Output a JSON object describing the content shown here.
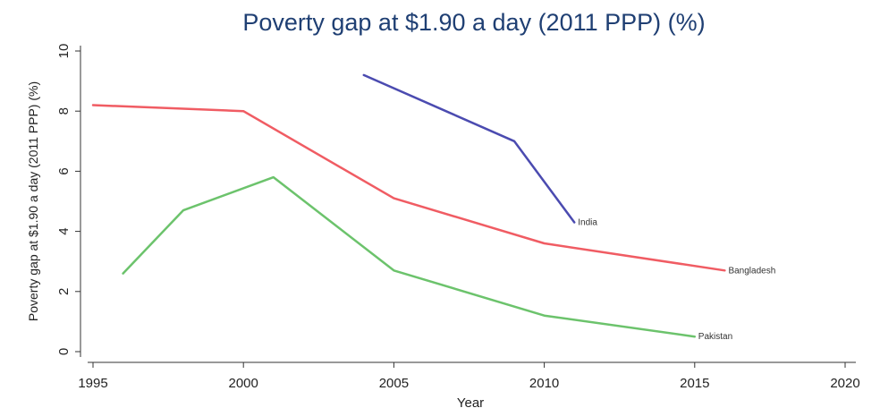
{
  "chart_data": {
    "type": "line",
    "title": "Poverty gap at $1.90 a day (2011 PPP) (%)",
    "xlabel": "Year",
    "ylabel": "Poverty gap at $1.90 a day (2011 PPP) (%)",
    "xlim": [
      1995,
      2020
    ],
    "ylim": [
      0,
      10
    ],
    "xticks": [
      1995,
      2000,
      2005,
      2010,
      2015,
      2020
    ],
    "yticks": [
      0,
      2,
      4,
      6,
      8,
      10
    ],
    "grid": false,
    "legend": "none",
    "series": [
      {
        "name": "India",
        "color": "#4b4bb0",
        "x": [
          2004,
          2009,
          2011
        ],
        "y": [
          9.2,
          7.0,
          4.3
        ]
      },
      {
        "name": "Bangladesh",
        "color": "#f05c63",
        "x": [
          1995,
          2000,
          2005,
          2010,
          2016
        ],
        "y": [
          8.2,
          8.0,
          5.1,
          3.6,
          2.7
        ]
      },
      {
        "name": "Pakistan",
        "color": "#6cc36c",
        "x": [
          1996,
          1998,
          2001,
          2005,
          2010,
          2015
        ],
        "y": [
          2.6,
          4.7,
          5.8,
          2.7,
          1.2,
          0.5
        ]
      }
    ]
  }
}
